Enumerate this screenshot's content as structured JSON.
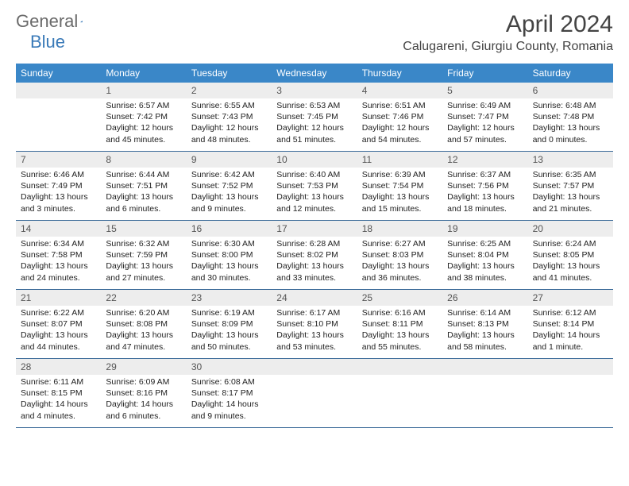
{
  "brand": {
    "part1": "General",
    "part2": "Blue"
  },
  "title": "April 2024",
  "location": "Calugareni, Giurgiu County, Romania",
  "colors": {
    "header_bg": "#3a87c8",
    "header_text": "#ffffff",
    "daynum_bg": "#ededed",
    "week_divider": "#3a6a98",
    "logo_gray": "#6a6a6a",
    "logo_blue": "#3a7ab8"
  },
  "dow": [
    "Sunday",
    "Monday",
    "Tuesday",
    "Wednesday",
    "Thursday",
    "Friday",
    "Saturday"
  ],
  "weeks": [
    [
      {
        "n": "",
        "empty": true
      },
      {
        "n": "1",
        "sunrise": "6:57 AM",
        "sunset": "7:42 PM",
        "daylight": "12 hours and 45 minutes."
      },
      {
        "n": "2",
        "sunrise": "6:55 AM",
        "sunset": "7:43 PM",
        "daylight": "12 hours and 48 minutes."
      },
      {
        "n": "3",
        "sunrise": "6:53 AM",
        "sunset": "7:45 PM",
        "daylight": "12 hours and 51 minutes."
      },
      {
        "n": "4",
        "sunrise": "6:51 AM",
        "sunset": "7:46 PM",
        "daylight": "12 hours and 54 minutes."
      },
      {
        "n": "5",
        "sunrise": "6:49 AM",
        "sunset": "7:47 PM",
        "daylight": "12 hours and 57 minutes."
      },
      {
        "n": "6",
        "sunrise": "6:48 AM",
        "sunset": "7:48 PM",
        "daylight": "13 hours and 0 minutes."
      }
    ],
    [
      {
        "n": "7",
        "sunrise": "6:46 AM",
        "sunset": "7:49 PM",
        "daylight": "13 hours and 3 minutes."
      },
      {
        "n": "8",
        "sunrise": "6:44 AM",
        "sunset": "7:51 PM",
        "daylight": "13 hours and 6 minutes."
      },
      {
        "n": "9",
        "sunrise": "6:42 AM",
        "sunset": "7:52 PM",
        "daylight": "13 hours and 9 minutes."
      },
      {
        "n": "10",
        "sunrise": "6:40 AM",
        "sunset": "7:53 PM",
        "daylight": "13 hours and 12 minutes."
      },
      {
        "n": "11",
        "sunrise": "6:39 AM",
        "sunset": "7:54 PM",
        "daylight": "13 hours and 15 minutes."
      },
      {
        "n": "12",
        "sunrise": "6:37 AM",
        "sunset": "7:56 PM",
        "daylight": "13 hours and 18 minutes."
      },
      {
        "n": "13",
        "sunrise": "6:35 AM",
        "sunset": "7:57 PM",
        "daylight": "13 hours and 21 minutes."
      }
    ],
    [
      {
        "n": "14",
        "sunrise": "6:34 AM",
        "sunset": "7:58 PM",
        "daylight": "13 hours and 24 minutes."
      },
      {
        "n": "15",
        "sunrise": "6:32 AM",
        "sunset": "7:59 PM",
        "daylight": "13 hours and 27 minutes."
      },
      {
        "n": "16",
        "sunrise": "6:30 AM",
        "sunset": "8:00 PM",
        "daylight": "13 hours and 30 minutes."
      },
      {
        "n": "17",
        "sunrise": "6:28 AM",
        "sunset": "8:02 PM",
        "daylight": "13 hours and 33 minutes."
      },
      {
        "n": "18",
        "sunrise": "6:27 AM",
        "sunset": "8:03 PM",
        "daylight": "13 hours and 36 minutes."
      },
      {
        "n": "19",
        "sunrise": "6:25 AM",
        "sunset": "8:04 PM",
        "daylight": "13 hours and 38 minutes."
      },
      {
        "n": "20",
        "sunrise": "6:24 AM",
        "sunset": "8:05 PM",
        "daylight": "13 hours and 41 minutes."
      }
    ],
    [
      {
        "n": "21",
        "sunrise": "6:22 AM",
        "sunset": "8:07 PM",
        "daylight": "13 hours and 44 minutes."
      },
      {
        "n": "22",
        "sunrise": "6:20 AM",
        "sunset": "8:08 PM",
        "daylight": "13 hours and 47 minutes."
      },
      {
        "n": "23",
        "sunrise": "6:19 AM",
        "sunset": "8:09 PM",
        "daylight": "13 hours and 50 minutes."
      },
      {
        "n": "24",
        "sunrise": "6:17 AM",
        "sunset": "8:10 PM",
        "daylight": "13 hours and 53 minutes."
      },
      {
        "n": "25",
        "sunrise": "6:16 AM",
        "sunset": "8:11 PM",
        "daylight": "13 hours and 55 minutes."
      },
      {
        "n": "26",
        "sunrise": "6:14 AM",
        "sunset": "8:13 PM",
        "daylight": "13 hours and 58 minutes."
      },
      {
        "n": "27",
        "sunrise": "6:12 AM",
        "sunset": "8:14 PM",
        "daylight": "14 hours and 1 minute."
      }
    ],
    [
      {
        "n": "28",
        "sunrise": "6:11 AM",
        "sunset": "8:15 PM",
        "daylight": "14 hours and 4 minutes."
      },
      {
        "n": "29",
        "sunrise": "6:09 AM",
        "sunset": "8:16 PM",
        "daylight": "14 hours and 6 minutes."
      },
      {
        "n": "30",
        "sunrise": "6:08 AM",
        "sunset": "8:17 PM",
        "daylight": "14 hours and 9 minutes."
      },
      {
        "n": "",
        "empty": true
      },
      {
        "n": "",
        "empty": true
      },
      {
        "n": "",
        "empty": true
      },
      {
        "n": "",
        "empty": true
      }
    ]
  ],
  "labels": {
    "sunrise": "Sunrise:",
    "sunset": "Sunset:",
    "daylight": "Daylight:"
  }
}
